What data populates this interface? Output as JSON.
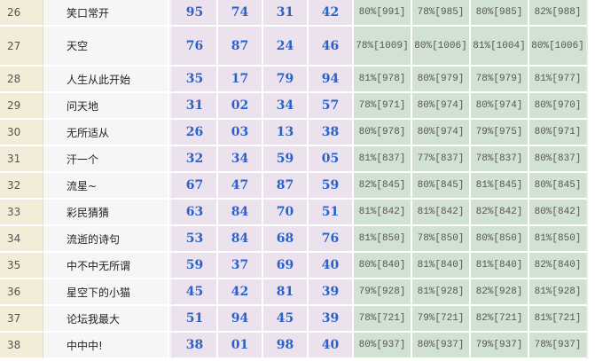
{
  "rows": [
    {
      "rank": "26",
      "name": "笑口常开",
      "nums": [
        "95",
        "74",
        "31",
        "42"
      ],
      "pcts": [
        "80%[991]",
        "78%[985]",
        "80%[985]",
        "82%[988]"
      ]
    },
    {
      "rank": "27",
      "name": "天空",
      "nums": [
        "76",
        "87",
        "24",
        "46"
      ],
      "pcts": [
        "78%[1009]",
        "80%[1006]",
        "81%[1004]",
        "80%[1006]"
      ]
    },
    {
      "rank": "28",
      "name": "人生从此开始",
      "nums": [
        "35",
        "17",
        "79",
        "94"
      ],
      "pcts": [
        "81%[978]",
        "80%[979]",
        "78%[979]",
        "81%[977]"
      ]
    },
    {
      "rank": "29",
      "name": "问天地",
      "nums": [
        "31",
        "02",
        "34",
        "57"
      ],
      "pcts": [
        "78%[971]",
        "80%[974]",
        "80%[974]",
        "80%[970]"
      ]
    },
    {
      "rank": "30",
      "name": "无所适从",
      "nums": [
        "26",
        "03",
        "13",
        "38"
      ],
      "pcts": [
        "80%[978]",
        "80%[974]",
        "79%[975]",
        "80%[971]"
      ]
    },
    {
      "rank": "31",
      "name": "汗一个",
      "nums": [
        "32",
        "34",
        "59",
        "05"
      ],
      "pcts": [
        "81%[837]",
        "77%[837]",
        "78%[837]",
        "80%[837]"
      ]
    },
    {
      "rank": "32",
      "name": "流星~",
      "nums": [
        "67",
        "47",
        "87",
        "59"
      ],
      "pcts": [
        "82%[845]",
        "80%[845]",
        "81%[845]",
        "80%[845]"
      ]
    },
    {
      "rank": "33",
      "name": "彩民猜猜",
      "nums": [
        "63",
        "84",
        "70",
        "51"
      ],
      "pcts": [
        "81%[842]",
        "81%[842]",
        "82%[842]",
        "80%[842]"
      ]
    },
    {
      "rank": "34",
      "name": "流逝的诗句",
      "nums": [
        "53",
        "84",
        "68",
        "76"
      ],
      "pcts": [
        "81%[850]",
        "78%[850]",
        "80%[850]",
        "81%[850]"
      ]
    },
    {
      "rank": "35",
      "name": "中不中无所谓",
      "nums": [
        "59",
        "37",
        "69",
        "40"
      ],
      "pcts": [
        "80%[840]",
        "81%[840]",
        "81%[840]",
        "82%[840]"
      ]
    },
    {
      "rank": "36",
      "name": "星空下的小猫",
      "nums": [
        "45",
        "42",
        "81",
        "39"
      ],
      "pcts": [
        "79%[928]",
        "81%[928]",
        "82%[928]",
        "81%[928]"
      ]
    },
    {
      "rank": "37",
      "name": "论坛我最大",
      "nums": [
        "51",
        "94",
        "45",
        "39"
      ],
      "pcts": [
        "78%[721]",
        "79%[721]",
        "82%[721]",
        "81%[721]"
      ]
    },
    {
      "rank": "38",
      "name": "中中中!",
      "nums": [
        "38",
        "01",
        "98",
        "40"
      ],
      "pcts": [
        "80%[937]",
        "80%[937]",
        "79%[937]",
        "78%[937]"
      ]
    }
  ],
  "colors": {
    "rank_bg": "#f2ecd9",
    "name_bg": "#f6f6f6",
    "num_bg": "#ebe2ee",
    "num_text": "#2a62c9",
    "pct_bg": "#d2e2d2"
  }
}
